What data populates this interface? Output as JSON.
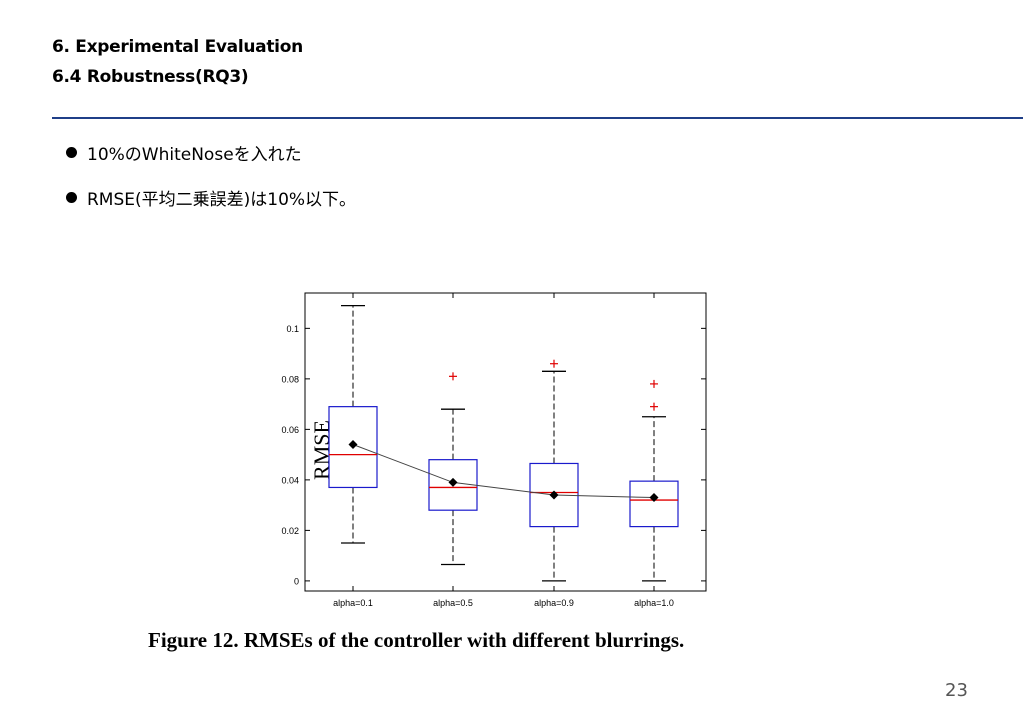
{
  "slide": {
    "title_line1": "6. Experimental Evaluation",
    "title_line2": "6.4 Robustness(RQ3)",
    "bullets": [
      "10%のWhiteNoseを入れた",
      "RMSE(平均二乗誤差)は10%以下。"
    ],
    "page_number": "23",
    "rule_color": "#1f3f88"
  },
  "figure": {
    "caption": "Figure 12. RMSEs of the controller with different blurrings."
  },
  "chart_data": {
    "type": "box",
    "ylabel": "RMSE",
    "ylim": [
      -0.004,
      0.114
    ],
    "yticks": [
      0,
      0.02,
      0.04,
      0.06,
      0.08,
      0.1
    ],
    "ytick_labels": [
      "0",
      "0.02",
      "0.04",
      "0.06",
      "0.08",
      "0.1"
    ],
    "categories": [
      "alpha=0.1",
      "alpha=0.5",
      "alpha=0.9",
      "alpha=1.0"
    ],
    "boxes": [
      {
        "whisker_low": 0.015,
        "q1": 0.037,
        "median": 0.05,
        "q3": 0.069,
        "whisker_high": 0.109,
        "mean": 0.054,
        "outliers": []
      },
      {
        "whisker_low": 0.0065,
        "q1": 0.028,
        "median": 0.037,
        "q3": 0.048,
        "whisker_high": 0.068,
        "mean": 0.039,
        "outliers": [
          0.081
        ]
      },
      {
        "whisker_low": 0.0,
        "q1": 0.0215,
        "median": 0.035,
        "q3": 0.0465,
        "whisker_high": 0.083,
        "mean": 0.034,
        "outliers": [
          0.086
        ]
      },
      {
        "whisker_low": 0.0,
        "q1": 0.0215,
        "median": 0.032,
        "q3": 0.0395,
        "whisker_high": 0.065,
        "mean": 0.033,
        "outliers": [
          0.069,
          0.078
        ]
      }
    ],
    "colors": {
      "box": "#1a1acc",
      "median": "#e00000",
      "outlier": "#e00000",
      "mean_line": "#444444"
    },
    "grid": false
  }
}
